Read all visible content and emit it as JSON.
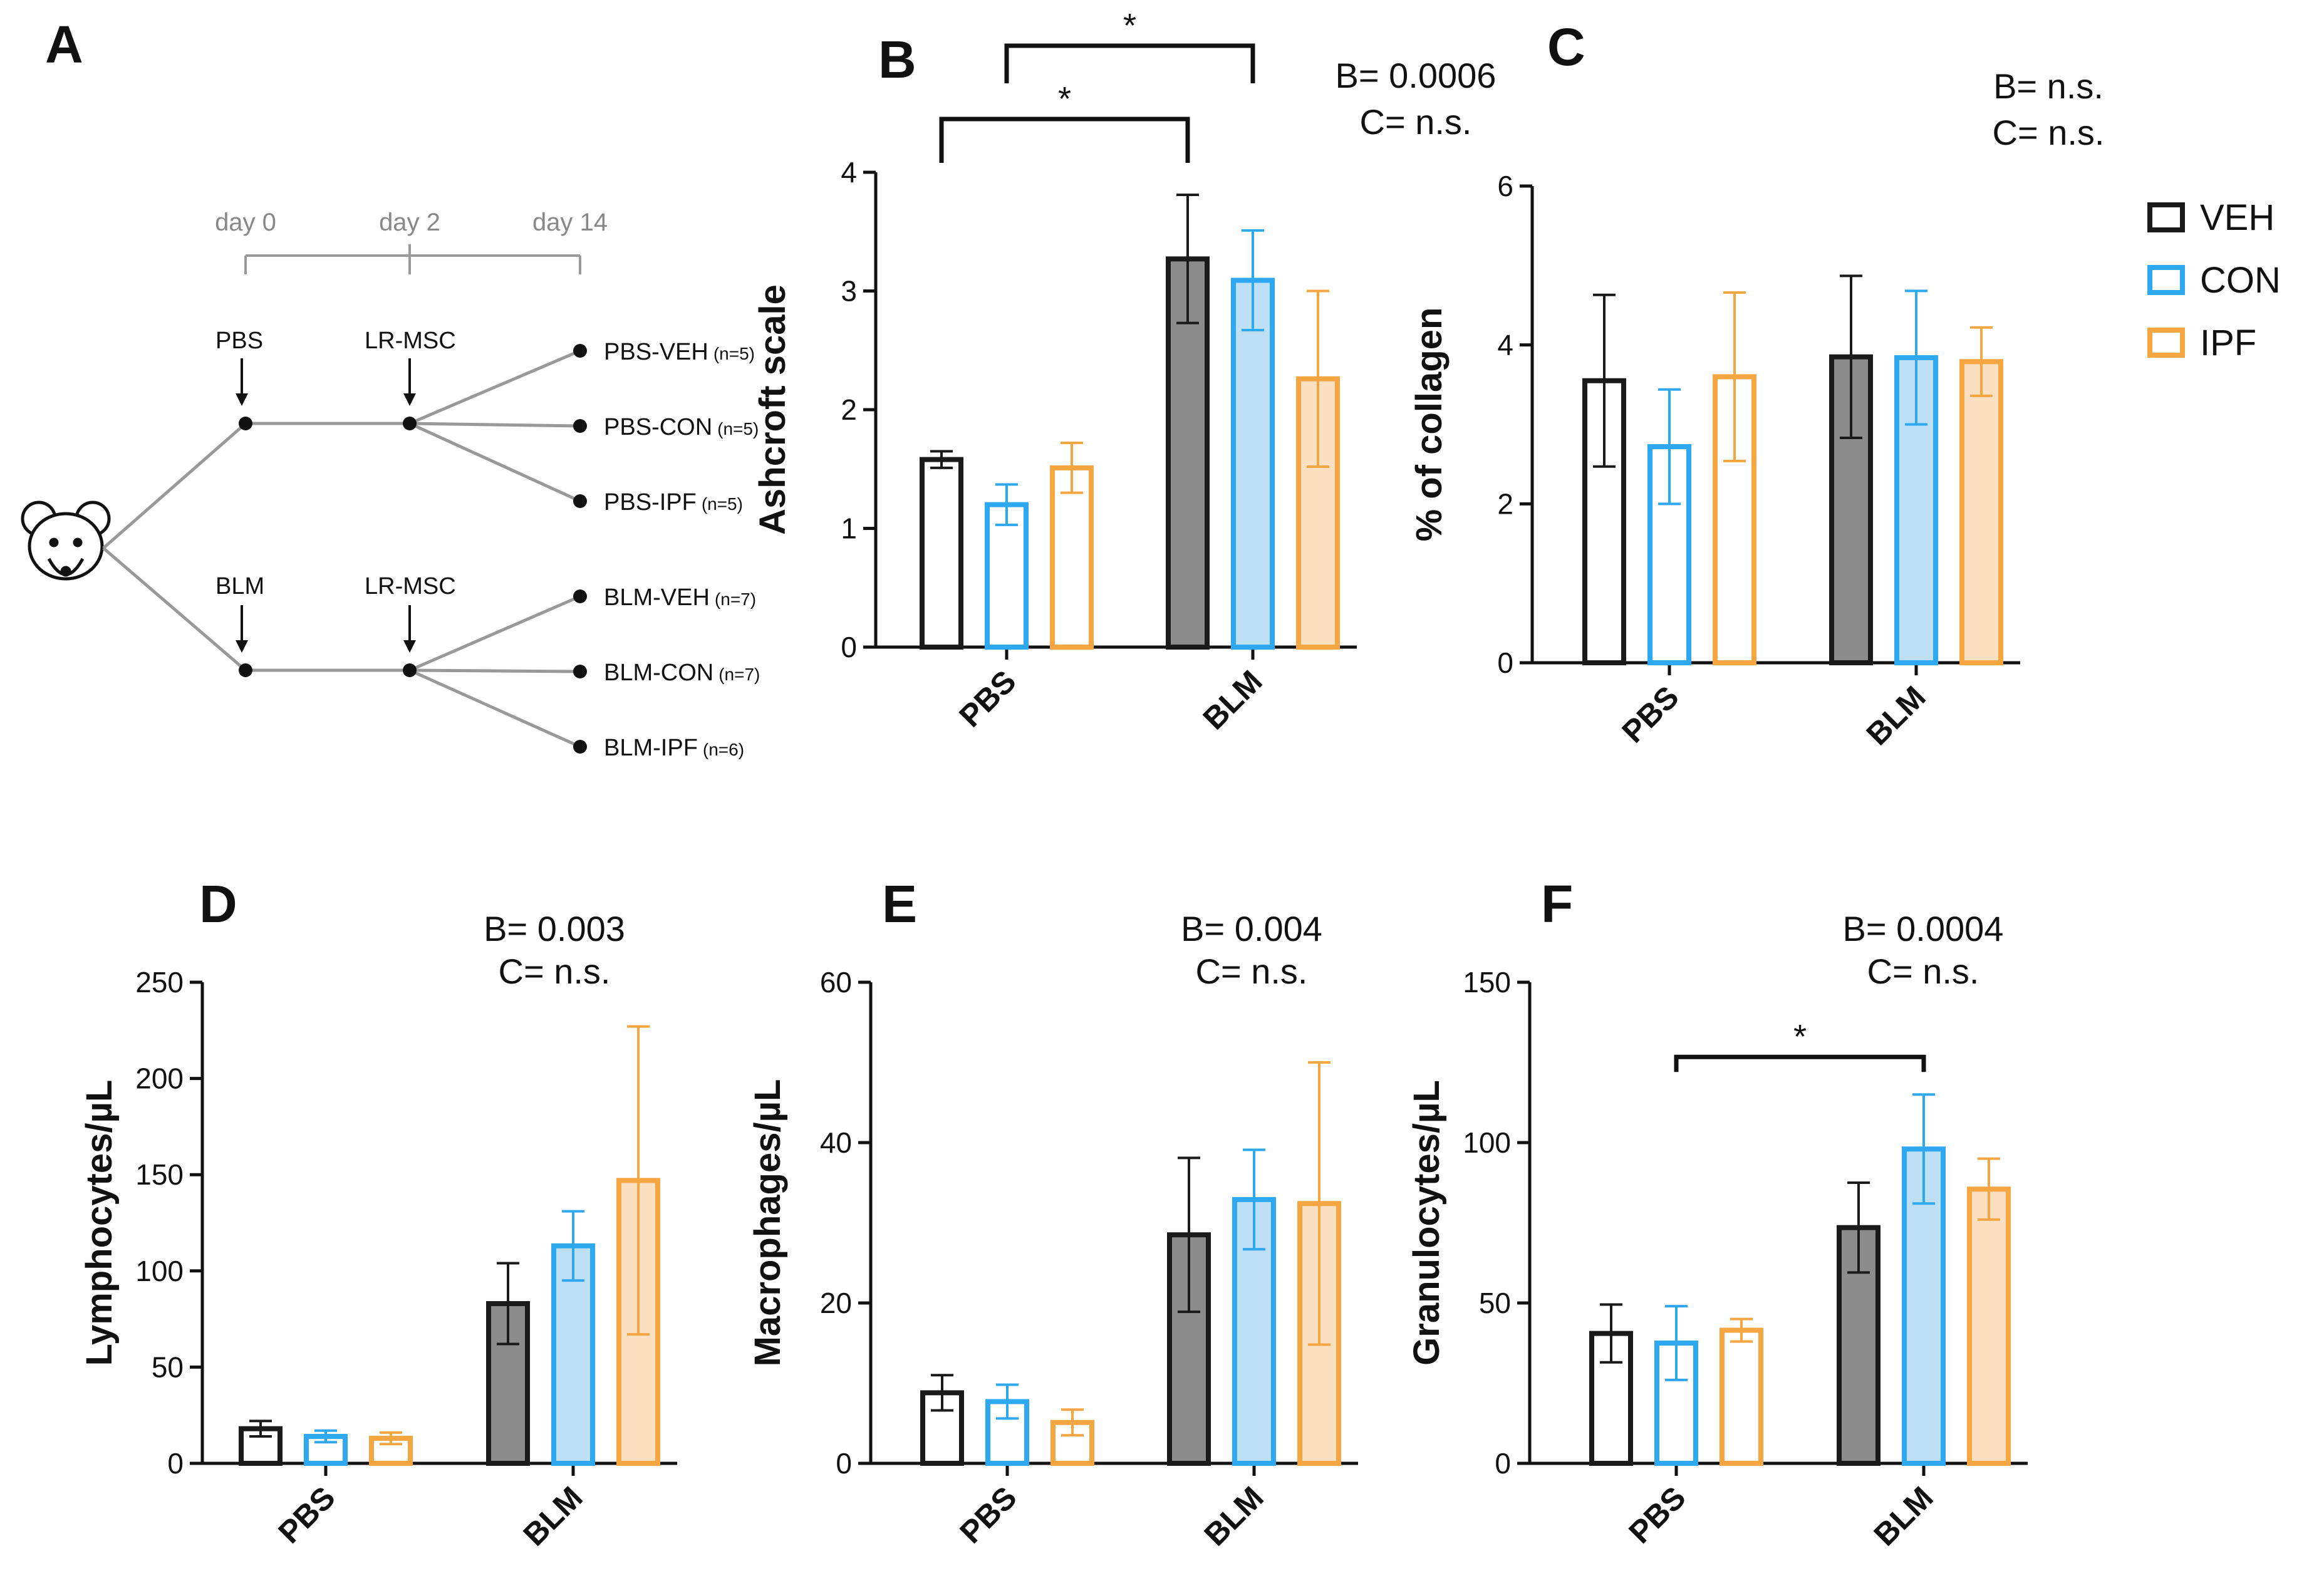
{
  "colors": {
    "VEH": "#1a1a1a",
    "CON": "#2ea8f0",
    "IPF": "#f5a640",
    "VEH_fill_BLM": "#8c8c8c",
    "CON_fill_BLM": "#bde0f7",
    "IPF_fill_BLM": "#fce0c2",
    "axis": "#111111",
    "schematic": "#999999"
  },
  "legend": [
    {
      "key": "VEH",
      "label": "VEH"
    },
    {
      "key": "CON",
      "label": "CON"
    },
    {
      "key": "IPF",
      "label": "IPF"
    }
  ],
  "schematic": {
    "letter": "A",
    "days": [
      "day 0",
      "day 2",
      "day 14"
    ],
    "pbs_label": "PBS",
    "blm_label": "BLM",
    "lrmsc_label": "LR-MSC",
    "mouse_icon": "mouse-icon",
    "groups": [
      {
        "label": "PBS-VEH",
        "n": "(n=5)"
      },
      {
        "label": "PBS-CON",
        "n": "(n=5)"
      },
      {
        "label": "PBS-IPF",
        "n": "(n=5)"
      },
      {
        "label": "BLM-VEH",
        "n": "(n=7)"
      },
      {
        "label": "BLM-CON",
        "n": "(n=7)"
      },
      {
        "label": "BLM-IPF",
        "n": "(n=6)"
      }
    ]
  },
  "chart_data": [
    {
      "id": "B",
      "letter": "B",
      "type": "bar",
      "ylabel": "Ashcroft scale",
      "ylim": [
        0,
        4
      ],
      "yticks": [
        0,
        1,
        2,
        3,
        4
      ],
      "categories": [
        "PBS",
        "BLM"
      ],
      "stat_lines": [
        "B= 0.0006",
        "C= n.s."
      ],
      "series": [
        {
          "name": "VEH",
          "values": [
            1.58,
            3.27
          ],
          "errors": [
            0.07,
            0.54
          ]
        },
        {
          "name": "CON",
          "values": [
            1.2,
            3.09
          ],
          "errors": [
            0.17,
            0.42
          ]
        },
        {
          "name": "IPF",
          "values": [
            1.51,
            2.26
          ],
          "errors": [
            0.21,
            0.74
          ]
        }
      ],
      "significance": [
        {
          "from": [
            "PBS",
            "VEH"
          ],
          "to": [
            "BLM",
            "VEH"
          ],
          "label": "*"
        },
        {
          "from": [
            "PBS",
            "CON"
          ],
          "to": [
            "BLM",
            "CON"
          ],
          "label": "*"
        }
      ]
    },
    {
      "id": "C",
      "letter": "C",
      "type": "bar",
      "ylabel": "% of collagen",
      "ylim": [
        0,
        6
      ],
      "yticks": [
        0,
        2,
        4,
        6
      ],
      "categories": [
        "PBS",
        "BLM"
      ],
      "stat_lines": [
        "B= n.s.",
        "C= n.s."
      ],
      "series": [
        {
          "name": "VEH",
          "values": [
            3.55,
            3.85
          ],
          "errors": [
            1.08,
            1.02
          ]
        },
        {
          "name": "CON",
          "values": [
            2.72,
            3.84
          ],
          "errors": [
            0.72,
            0.84
          ]
        },
        {
          "name": "IPF",
          "values": [
            3.6,
            3.79
          ],
          "errors": [
            1.06,
            0.43
          ]
        }
      ],
      "significance": []
    },
    {
      "id": "D",
      "letter": "D",
      "type": "bar",
      "ylabel": "Lymphocytes/µL",
      "ylim": [
        0,
        250
      ],
      "yticks": [
        0,
        50,
        100,
        150,
        200,
        250
      ],
      "categories": [
        "PBS",
        "BLM"
      ],
      "stat_lines": [
        "B= 0.003",
        "C= n.s."
      ],
      "series": [
        {
          "name": "VEH",
          "values": [
            18,
            83
          ],
          "errors": [
            4,
            21
          ]
        },
        {
          "name": "CON",
          "values": [
            14,
            113
          ],
          "errors": [
            3,
            18
          ]
        },
        {
          "name": "IPF",
          "values": [
            13,
            147
          ],
          "errors": [
            3,
            80
          ]
        }
      ],
      "significance": []
    },
    {
      "id": "E",
      "letter": "E",
      "type": "bar",
      "ylabel": "Macrophages/µL",
      "ylim": [
        0,
        60
      ],
      "yticks": [
        0,
        20,
        40,
        60
      ],
      "categories": [
        "PBS",
        "BLM"
      ],
      "stat_lines": [
        "B= 0.004",
        "C= n.s."
      ],
      "series": [
        {
          "name": "VEH",
          "values": [
            8.8,
            28.5
          ],
          "errors": [
            2.2,
            9.6
          ]
        },
        {
          "name": "CON",
          "values": [
            7.7,
            32.9
          ],
          "errors": [
            2.1,
            6.2
          ]
        },
        {
          "name": "IPF",
          "values": [
            5.1,
            32.4
          ],
          "errors": [
            1.6,
            17.6
          ]
        }
      ],
      "significance": []
    },
    {
      "id": "F",
      "letter": "F",
      "type": "bar",
      "ylabel": "Granulocytes/µL",
      "ylim": [
        0,
        150
      ],
      "yticks": [
        0,
        50,
        100,
        150
      ],
      "categories": [
        "PBS",
        "BLM"
      ],
      "stat_lines": [
        "B= 0.0004",
        "C= n.s."
      ],
      "series": [
        {
          "name": "VEH",
          "values": [
            40.5,
            73.5
          ],
          "errors": [
            9,
            14
          ]
        },
        {
          "name": "CON",
          "values": [
            37.5,
            98
          ],
          "errors": [
            11.5,
            17
          ]
        },
        {
          "name": "IPF",
          "values": [
            41.5,
            85.5
          ],
          "errors": [
            3.5,
            9.5
          ]
        }
      ],
      "significance": [
        {
          "from": [
            "PBS",
            "CON"
          ],
          "to": [
            "BLM",
            "CON"
          ],
          "label": "*"
        }
      ]
    }
  ]
}
